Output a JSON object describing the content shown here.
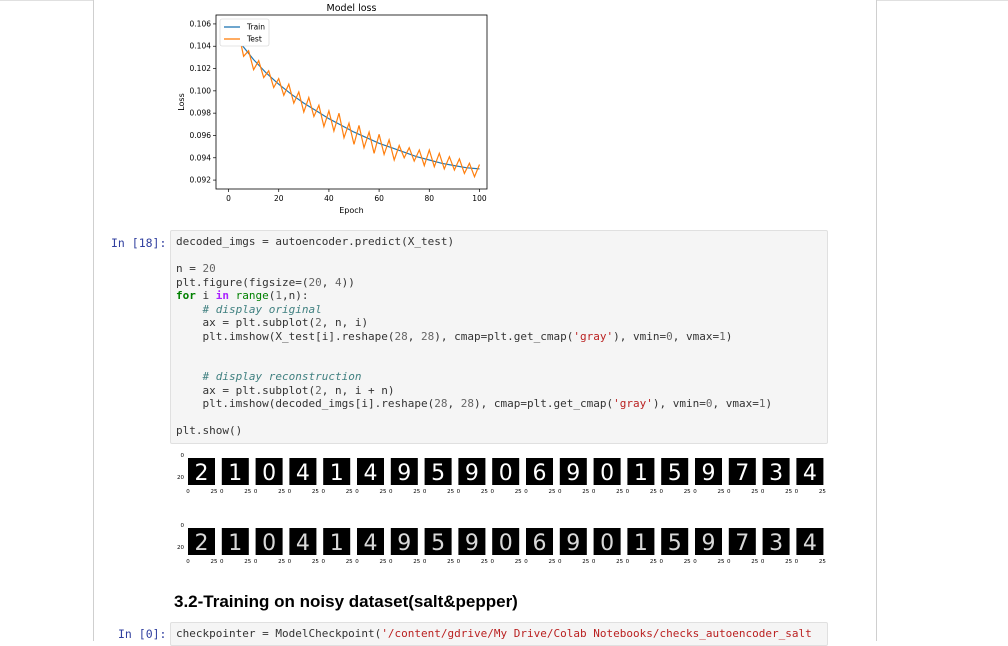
{
  "chart_data": {
    "type": "line",
    "title": "Model loss",
    "xlabel": "Epoch",
    "ylabel": "Loss",
    "xlim": [
      -5,
      103
    ],
    "ylim": [
      0.0912,
      0.1068
    ],
    "xticks": [
      "0",
      "20",
      "40",
      "60",
      "80",
      "100"
    ],
    "yticks": [
      "0.092",
      "0.094",
      "0.096",
      "0.098",
      "0.100",
      "0.102",
      "0.104",
      "0.106"
    ],
    "legend_position": "top-left",
    "series": [
      {
        "name": "Train",
        "color": "#1f77b4",
        "x": [
          0,
          5,
          10,
          15,
          20,
          25,
          30,
          35,
          40,
          45,
          50,
          55,
          60,
          65,
          70,
          75,
          80,
          85,
          90,
          95,
          100
        ],
        "values": [
          0.1058,
          0.1042,
          0.1028,
          0.1016,
          0.1006,
          0.0997,
          0.0989,
          0.0982,
          0.0975,
          0.0969,
          0.0963,
          0.0958,
          0.0953,
          0.0949,
          0.0945,
          0.0941,
          0.0938,
          0.0935,
          0.0933,
          0.0931,
          0.093
        ]
      },
      {
        "name": "Test",
        "color": "#ff7f0e",
        "x": [
          0,
          2,
          4,
          6,
          8,
          10,
          12,
          14,
          16,
          18,
          20,
          22,
          24,
          26,
          28,
          30,
          32,
          34,
          36,
          38,
          40,
          42,
          44,
          46,
          48,
          50,
          52,
          54,
          56,
          58,
          60,
          62,
          64,
          66,
          68,
          70,
          72,
          74,
          76,
          78,
          80,
          82,
          84,
          86,
          88,
          90,
          92,
          94,
          96,
          98,
          100
        ],
        "values": [
          0.1063,
          0.1043,
          0.1052,
          0.1031,
          0.1036,
          0.1019,
          0.1027,
          0.1012,
          0.1018,
          0.1003,
          0.1011,
          0.0996,
          0.1006,
          0.0989,
          0.0999,
          0.0981,
          0.0994,
          0.0977,
          0.0987,
          0.0968,
          0.0982,
          0.0964,
          0.098,
          0.0958,
          0.0971,
          0.0952,
          0.0969,
          0.0949,
          0.0963,
          0.0944,
          0.0961,
          0.0943,
          0.0956,
          0.0938,
          0.0951,
          0.094,
          0.0949,
          0.0937,
          0.0947,
          0.0933,
          0.0947,
          0.0932,
          0.0944,
          0.093,
          0.0941,
          0.0929,
          0.0939,
          0.0926,
          0.0935,
          0.0923,
          0.0934
        ]
      }
    ]
  },
  "cells": [
    {
      "prompt": "In [18]:"
    },
    {
      "prompt": "In [0]:"
    }
  ],
  "digits": {
    "original": [
      "2",
      "1",
      "0",
      "4",
      "1",
      "4",
      "9",
      "5",
      "9",
      "0",
      "6",
      "9",
      "0",
      "1",
      "5",
      "9",
      "7",
      "3",
      "4"
    ],
    "reconstruction": [
      "2",
      "1",
      "0",
      "4",
      "1",
      "4",
      "9",
      "5",
      "9",
      "0",
      "6",
      "9",
      "0",
      "1",
      "5",
      "9",
      "7",
      "3",
      "4"
    ],
    "ytick_top": "0",
    "ytick_mid": "20",
    "xtick_left": "0",
    "xtick_right": "25"
  },
  "section_heading": "3.2-Training on noisy dataset(salt&pepper)"
}
